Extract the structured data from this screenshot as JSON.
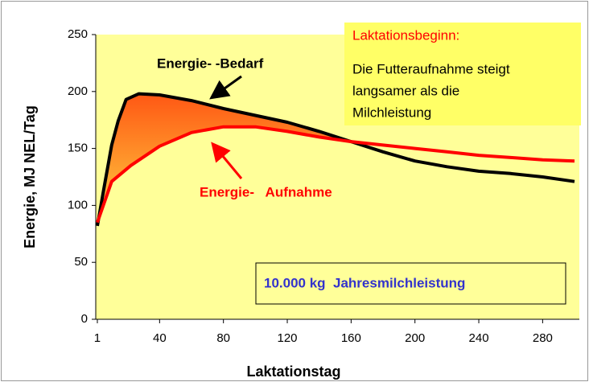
{
  "chart_data": {
    "type": "line",
    "xlabel": "Laktationstag",
    "ylabel": "Energie, MJ NEL/Tag",
    "annotations": [
      "Energie- -Bedarf",
      "Energie-   Aufnahme"
    ],
    "callout": {
      "title": "Laktationsbeginn:",
      "lines": [
        "Die Futteraufnahme steigt",
        "langsamer als die",
        "Milchleistung"
      ]
    },
    "info_box": "10.000 kg  Jahresmilchleistung",
    "series": [
      {
        "color": "#000000",
        "x": [
          1,
          5,
          10,
          14,
          19,
          27,
          40,
          60,
          80,
          100,
          120,
          140,
          160,
          180,
          200,
          220,
          240,
          260,
          280,
          300
        ],
        "values": [
          82,
          114,
          153,
          174,
          193,
          198,
          197,
          192,
          185,
          179,
          173,
          165,
          156,
          147,
          139,
          134,
          130,
          128,
          125,
          121
        ]
      },
      {
        "color": "#ff0000",
        "x": [
          1,
          10,
          22,
          40,
          60,
          80,
          100,
          120,
          140,
          160,
          180,
          200,
          220,
          240,
          260,
          280,
          300
        ],
        "values": [
          85,
          121,
          135,
          152,
          164,
          169,
          169,
          165,
          160,
          156,
          153,
          150,
          147,
          144,
          142,
          140,
          139
        ]
      }
    ],
    "xlim": [
      0,
      303
    ],
    "xticks": [
      1,
      40,
      80,
      120,
      160,
      200,
      240,
      280
    ],
    "ylim": [
      0,
      250
    ],
    "yticks": [
      0,
      50,
      100,
      150,
      200,
      250
    ],
    "background": "#ffff99"
  }
}
